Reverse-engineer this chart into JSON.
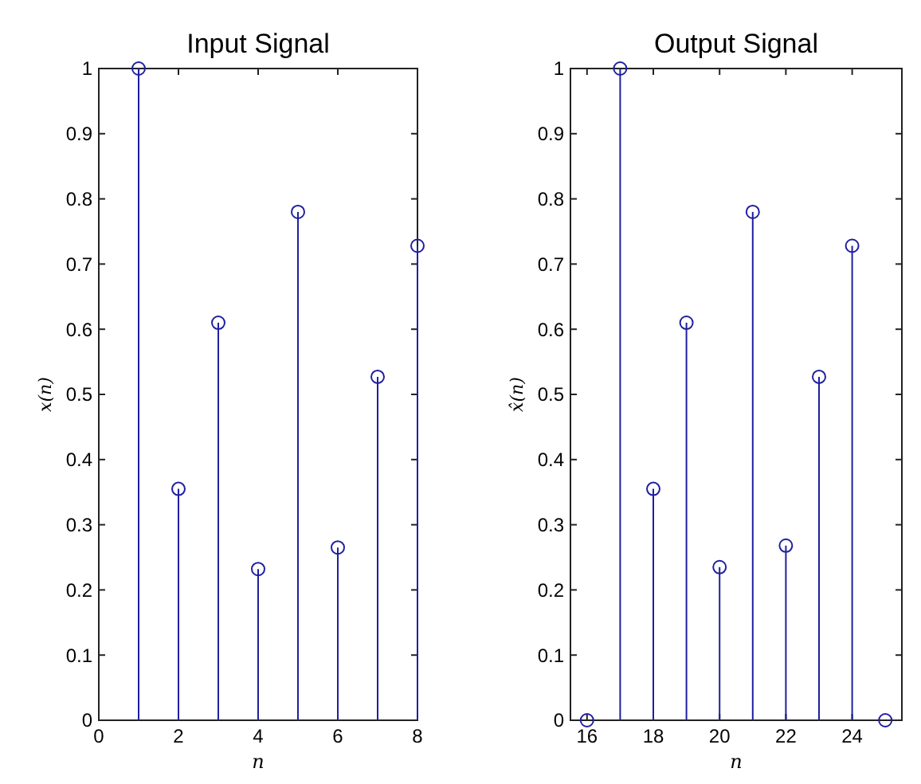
{
  "chart_data": [
    {
      "type": "lollipop",
      "title": "Input Signal",
      "xlabel": "n",
      "ylabel": "x(n)",
      "x": [
        1,
        2,
        3,
        4,
        5,
        6,
        7,
        8
      ],
      "series": [
        {
          "color": "#1f1fa0",
          "values": [
            1,
            0.355,
            0.61,
            0.232,
            0.78,
            0.265,
            0.527,
            0.728
          ]
        }
      ],
      "xlim": [
        0,
        8
      ],
      "xticks": [
        0,
        2,
        4,
        6,
        8
      ],
      "ylim": [
        0,
        1
      ],
      "yticks": [
        0,
        0.1,
        0.2,
        0.3,
        0.4,
        0.5,
        0.6,
        0.7,
        0.8,
        0.9,
        1
      ],
      "marker": "circle"
    },
    {
      "type": "lollipop",
      "title": "Output Signal",
      "xlabel": "n",
      "ylabel": "x̂(n)",
      "x": [
        16,
        17,
        18,
        19,
        20,
        21,
        22,
        23,
        24,
        25
      ],
      "series": [
        {
          "color": "#1f1fa0",
          "values": [
            0,
            1,
            0.355,
            0.61,
            0.235,
            0.78,
            0.268,
            0.527,
            0.728,
            0
          ]
        }
      ],
      "xlim": [
        15.5,
        25.5
      ],
      "xticks": [
        16,
        18,
        20,
        22,
        24
      ],
      "ylim": [
        0,
        1
      ],
      "yticks": [
        0,
        0.1,
        0.2,
        0.3,
        0.4,
        0.5,
        0.6,
        0.7,
        0.8,
        0.9,
        1
      ],
      "marker": "circle"
    }
  ]
}
